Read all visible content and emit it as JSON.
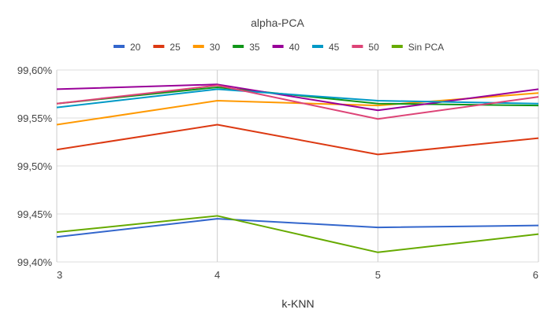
{
  "chart_data": {
    "type": "line",
    "title": "alpha-PCA",
    "xlabel": "k-KNN",
    "ylabel": "",
    "x": [
      3,
      4,
      5,
      6
    ],
    "x_tick_labels": [
      "3",
      "4",
      "5",
      "6"
    ],
    "ylim": [
      99.4,
      99.6
    ],
    "y_ticks": [
      99.4,
      99.45,
      99.5,
      99.55,
      99.6
    ],
    "y_tick_labels": [
      "99,40%",
      "99,45%",
      "99,50%",
      "99,55%",
      "99,60%"
    ],
    "legend_position": "top",
    "grid": true,
    "series": [
      {
        "name": "20",
        "color": "#3366cc",
        "values": [
          99.426,
          99.445,
          99.436,
          99.438
        ]
      },
      {
        "name": "25",
        "color": "#dc3912",
        "values": [
          99.517,
          99.543,
          99.512,
          99.529
        ]
      },
      {
        "name": "30",
        "color": "#ff9900",
        "values": [
          99.543,
          99.568,
          99.563,
          99.576
        ]
      },
      {
        "name": "35",
        "color": "#109618",
        "values": [
          99.565,
          99.582,
          99.565,
          99.563
        ]
      },
      {
        "name": "40",
        "color": "#990099",
        "values": [
          99.58,
          99.585,
          99.558,
          99.58
        ]
      },
      {
        "name": "45",
        "color": "#0099c6",
        "values": [
          99.561,
          99.58,
          99.568,
          99.565
        ]
      },
      {
        "name": "50",
        "color": "#dd4477",
        "values": [
          99.565,
          99.584,
          99.549,
          99.572
        ]
      },
      {
        "name": "Sin PCA",
        "color": "#66aa00",
        "values": [
          99.431,
          99.448,
          99.41,
          99.429
        ]
      }
    ]
  }
}
